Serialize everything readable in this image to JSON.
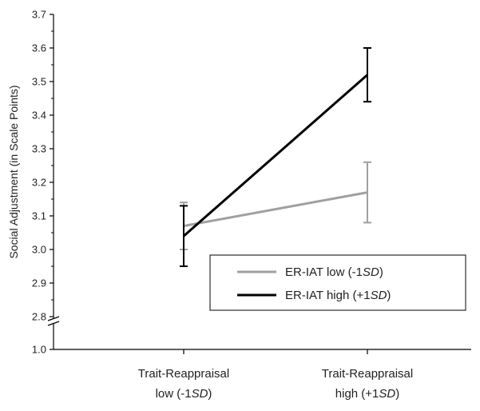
{
  "chart_data": {
    "type": "line",
    "title": "",
    "ylabel": "Social Adjustment (in Scale Points)",
    "xlabel": "",
    "categories": [
      [
        "Trait-Reappraisal",
        "low (-1",
        "SD",
        ")"
      ],
      [
        "Trait-Reappraisal",
        "high (+1",
        "SD",
        ")"
      ]
    ],
    "yticks_upper": [
      "2.8",
      "2.9",
      "3.0",
      "3.1",
      "3.2",
      "3.3",
      "3.4",
      "3.5",
      "3.6",
      "3.7"
    ],
    "ytick_lower": "1.0",
    "ylim_upper": [
      2.8,
      3.7
    ],
    "ylim_lower": [
      1.0,
      1.0
    ],
    "axis_break": true,
    "legend_position": "lower-right",
    "series": [
      {
        "name": [
          "ER-IAT low (-1",
          "SD",
          ")"
        ],
        "color": "#a0a0a0",
        "values": [
          3.07,
          3.17
        ],
        "err_lo": [
          3.0,
          3.08
        ],
        "err_hi": [
          3.14,
          3.26
        ]
      },
      {
        "name": [
          "ER-IAT high (+1",
          "SD",
          ")"
        ],
        "color": "#000000",
        "values": [
          3.04,
          3.52
        ],
        "err_lo": [
          2.95,
          3.44
        ],
        "err_hi": [
          3.13,
          3.6
        ]
      }
    ]
  }
}
